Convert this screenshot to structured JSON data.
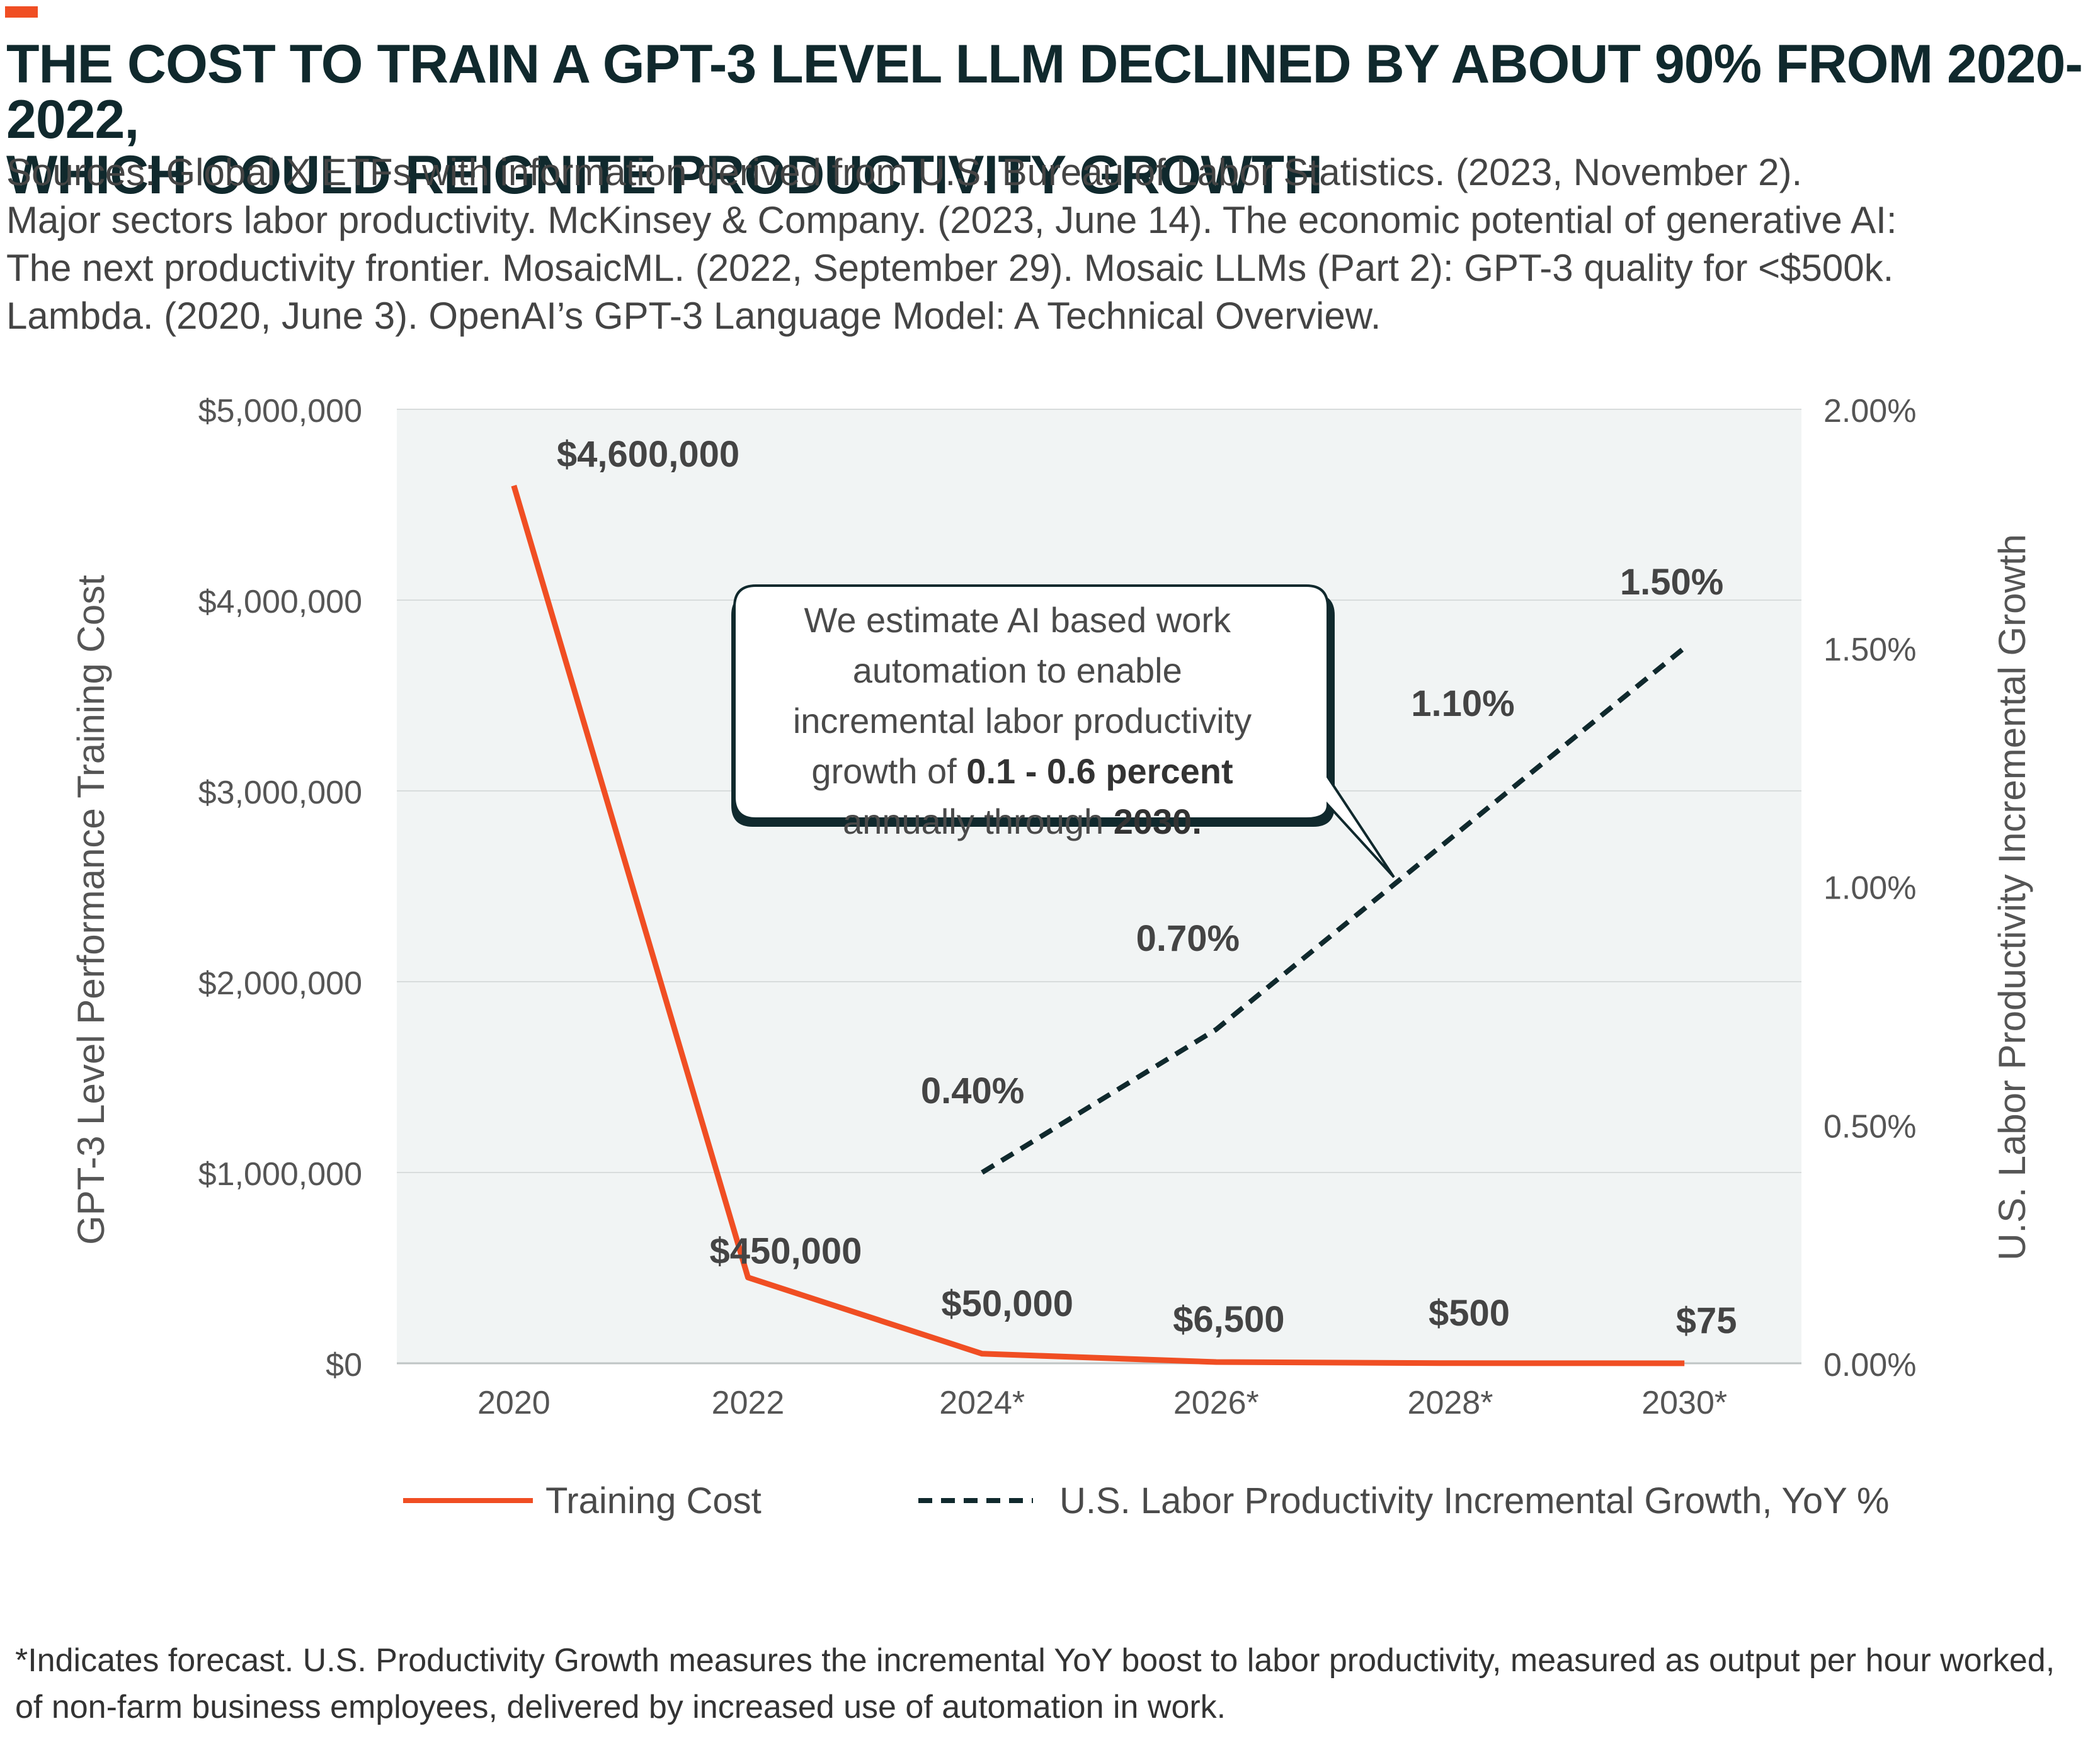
{
  "header": {
    "accent_color": "#f04e23",
    "title_line1": "THE COST TO TRAIN A GPT-3 LEVEL LLM DECLINED BY ABOUT 90% FROM 2020-2022,",
    "title_line2": "WHICH COULD REIGNITE PRODUCTIVITY GROWTH",
    "sources_line1": "Sources: Global X ETFs with information derived from U.S. Bureau of Labor Statistics. (2023, November 2).",
    "sources_line2": "Major sectors labor productivity. McKinsey & Company. (2023, June 14). The economic potential of generative AI:",
    "sources_line3": "The next productivity frontier. MosaicML. (2022, September 29). Mosaic LLMs (Part 2): GPT-3 quality for <$500k.",
    "sources_line4": "Lambda. (2020, June 3). OpenAI’s GPT-3 Language Model: A Technical Overview."
  },
  "chart_data": {
    "type": "line",
    "x": [
      "2020",
      "2022",
      "2024*",
      "2026*",
      "2028*",
      "2030*"
    ],
    "y_left": {
      "label": "GPT-3 Level Performance Training Cost",
      "ticks": [
        "$0",
        "$1,000,000",
        "$2,000,000",
        "$3,000,000",
        "$4,000,000",
        "$5,000,000"
      ],
      "range": [
        0,
        5000000
      ]
    },
    "y_right": {
      "label": "U.S. Labor Productivity Incremental Growth",
      "ticks": [
        "0.00%",
        "0.50%",
        "1.00%",
        "1.50%",
        "2.00%"
      ],
      "range": [
        0,
        2.0
      ]
    },
    "grid": true,
    "series": [
      {
        "name": "Training Cost",
        "axis": "left",
        "color": "#f04e23",
        "style": "solid",
        "values": [
          4600000,
          450000,
          50000,
          6500,
          500,
          75
        ],
        "labels": [
          "$4,600,000",
          "$450,000",
          "$50,000",
          "$6,500",
          "$500",
          "$75"
        ]
      },
      {
        "name": "U.S. Labor Productivity Incremental Growth, YoY %",
        "axis": "right",
        "color": "#10292d",
        "style": "dashed",
        "values": [
          null,
          null,
          0.4,
          0.7,
          1.1,
          1.5
        ],
        "labels": [
          "",
          "",
          "0.40%",
          "0.70%",
          "1.10%",
          "1.50%"
        ]
      }
    ],
    "legend_position": "bottom",
    "plot_background": "#f1f4f4",
    "annotation": {
      "line1": "We estimate AI based work",
      "line2": "automation to enable",
      "line3": "incremental labor productivity",
      "line4_prefix": "growth of ",
      "line4_bold": "0.1 - 0.6 percent",
      "line5_prefix": "annually through ",
      "line5_bold": "2030."
    }
  },
  "footnote": {
    "line1": "*Indicates forecast. U.S. Productivity Growth measures the incremental YoY boost to labor productivity, measured as output per hour worked,",
    "line2": "of non-farm business employees, delivered by increased use of automation in work."
  }
}
